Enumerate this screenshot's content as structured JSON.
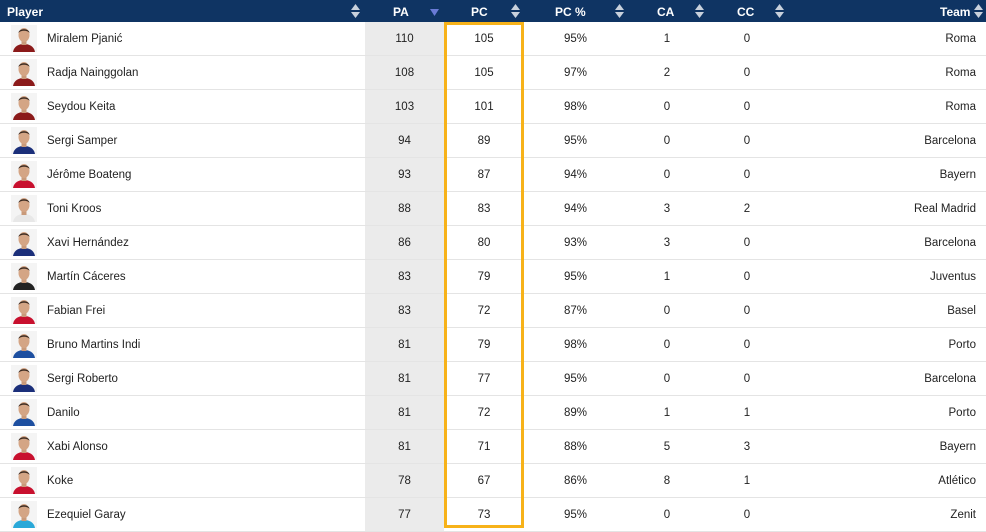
{
  "columns": {
    "player": "Player",
    "pa": "PA",
    "pc": "PC",
    "pc_pct": "PC %",
    "ca": "CA",
    "cc": "CC",
    "team": "Team"
  },
  "sorted_by": "PA",
  "sort_direction": "descending",
  "highlight_color": "#f7b219",
  "header_color": "#0f3463",
  "rows": [
    {
      "player": "Miralem Pjanić",
      "pa": "110",
      "pc": "105",
      "pc_pct": "95%",
      "ca": "1",
      "cc": "0",
      "team": "Roma",
      "kit": "#8b1a1a"
    },
    {
      "player": "Radja Nainggolan",
      "pa": "108",
      "pc": "105",
      "pc_pct": "97%",
      "ca": "2",
      "cc": "0",
      "team": "Roma",
      "kit": "#8b1a1a"
    },
    {
      "player": "Seydou Keita",
      "pa": "103",
      "pc": "101",
      "pc_pct": "98%",
      "ca": "0",
      "cc": "0",
      "team": "Roma",
      "kit": "#8b1a1a"
    },
    {
      "player": "Sergi Samper",
      "pa": "94",
      "pc": "89",
      "pc_pct": "95%",
      "ca": "0",
      "cc": "0",
      "team": "Barcelona",
      "kit": "#1b2f7a"
    },
    {
      "player": "Jérôme Boateng",
      "pa": "93",
      "pc": "87",
      "pc_pct": "94%",
      "ca": "0",
      "cc": "0",
      "team": "Bayern",
      "kit": "#c8102e"
    },
    {
      "player": "Toni Kroos",
      "pa": "88",
      "pc": "83",
      "pc_pct": "94%",
      "ca": "3",
      "cc": "2",
      "team": "Real Madrid",
      "kit": "#e8e8e8"
    },
    {
      "player": "Xavi Hernández",
      "pa": "86",
      "pc": "80",
      "pc_pct": "93%",
      "ca": "3",
      "cc": "0",
      "team": "Barcelona",
      "kit": "#1b2f7a"
    },
    {
      "player": "Martín Cáceres",
      "pa": "83",
      "pc": "79",
      "pc_pct": "95%",
      "ca": "1",
      "cc": "0",
      "team": "Juventus",
      "kit": "#222222"
    },
    {
      "player": "Fabian Frei",
      "pa": "83",
      "pc": "72",
      "pc_pct": "87%",
      "ca": "0",
      "cc": "0",
      "team": "Basel",
      "kit": "#c8102e"
    },
    {
      "player": "Bruno Martins Indi",
      "pa": "81",
      "pc": "79",
      "pc_pct": "98%",
      "ca": "0",
      "cc": "0",
      "team": "Porto",
      "kit": "#1d4fa0"
    },
    {
      "player": "Sergi Roberto",
      "pa": "81",
      "pc": "77",
      "pc_pct": "95%",
      "ca": "0",
      "cc": "0",
      "team": "Barcelona",
      "kit": "#1b2f7a"
    },
    {
      "player": "Danilo",
      "pa": "81",
      "pc": "72",
      "pc_pct": "89%",
      "ca": "1",
      "cc": "1",
      "team": "Porto",
      "kit": "#1d4fa0"
    },
    {
      "player": "Xabi Alonso",
      "pa": "81",
      "pc": "71",
      "pc_pct": "88%",
      "ca": "5",
      "cc": "3",
      "team": "Bayern",
      "kit": "#c8102e"
    },
    {
      "player": "Koke",
      "pa": "78",
      "pc": "67",
      "pc_pct": "86%",
      "ca": "8",
      "cc": "1",
      "team": "Atlético",
      "kit": "#c8102e"
    },
    {
      "player": "Ezequiel Garay",
      "pa": "77",
      "pc": "73",
      "pc_pct": "95%",
      "ca": "0",
      "cc": "0",
      "team": "Zenit",
      "kit": "#2aa8d8"
    }
  ]
}
